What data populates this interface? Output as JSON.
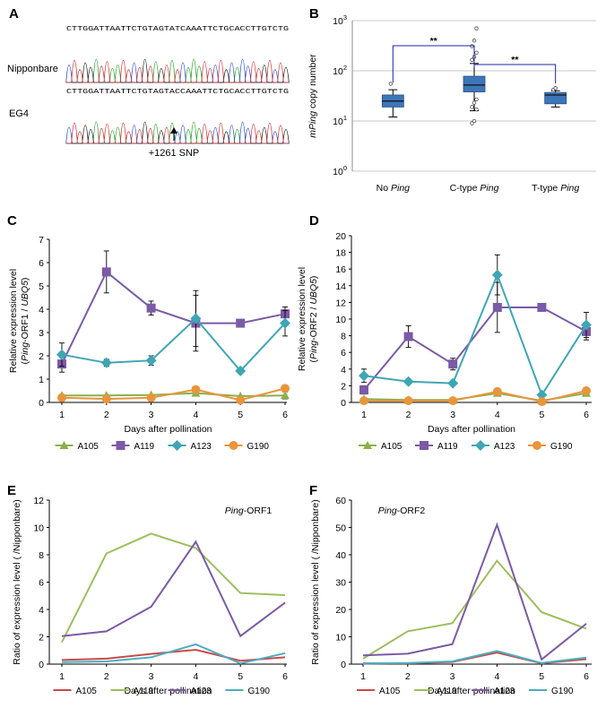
{
  "panels": {
    "A": {
      "label": "A",
      "rows": [
        {
          "name": "Nipponbare",
          "sequence": "CTTGGATTAATTCTGTAGTATCAAATTCTGCACCTTGTCTG"
        },
        {
          "name": "EG4",
          "sequence": "CTTGGATTAATTCTGTAGTACCAAATTCTGCACCTTGTCTG"
        }
      ],
      "snp_label": "+1261 SNP"
    }
  },
  "chart_data": [
    {
      "id": "B",
      "panel_label": "B",
      "type": "box",
      "ylabel_parts": [
        {
          "t": "mPing",
          "i": true
        },
        {
          "t": " copy number",
          "i": false
        }
      ],
      "y_scale": "log",
      "ylim": [
        1,
        1000
      ],
      "yticks": [
        {
          "b": "10",
          "e": "0",
          "v": 1
        },
        {
          "b": "10",
          "e": "1",
          "v": 10
        },
        {
          "b": "10",
          "e": "2",
          "v": 100
        },
        {
          "b": "10",
          "e": "3",
          "v": 1000
        }
      ],
      "grid": true,
      "categories": [
        {
          "parts": [
            {
              "t": "No ",
              "i": false
            },
            {
              "t": "Ping",
              "i": true
            }
          ]
        },
        {
          "parts": [
            {
              "t": "C-type ",
              "i": false
            },
            {
              "t": "Ping",
              "i": true
            }
          ]
        },
        {
          "parts": [
            {
              "t": "T-type ",
              "i": false
            },
            {
              "t": "Ping",
              "i": true
            }
          ]
        }
      ],
      "boxes": [
        {
          "whisker_low": 12,
          "q1": 19,
          "median": 25,
          "q3": 33,
          "whisker_high": 42,
          "outliers": [
            55
          ]
        },
        {
          "whisker_low": 16,
          "q1": 38,
          "median": 52,
          "q3": 78,
          "whisker_high": 140,
          "outliers": [
            9,
            10,
            17,
            19,
            23,
            27,
            165,
            190,
            230,
            310,
            400,
            700
          ]
        },
        {
          "whisker_low": 19,
          "q1": 22,
          "median": 33,
          "q3": 37,
          "whisker_high": 40,
          "outliers": [
            42,
            45
          ]
        }
      ],
      "significance": [
        {
          "from": 0,
          "to": 1,
          "label": "**"
        },
        {
          "from": 1,
          "to": 2,
          "label": "**"
        }
      ],
      "colors": {
        "box": "#3d76b8",
        "bracket": "#2020b0",
        "grid": "#c8c8c8"
      }
    },
    {
      "id": "C",
      "panel_label": "C",
      "type": "line",
      "x": [
        1,
        2,
        3,
        4,
        5,
        6
      ],
      "xlabel": "Days after pollination",
      "ylabel_line1": "Relative expression level",
      "ylabel_line2_parts": [
        {
          "t": "(",
          "i": false
        },
        {
          "t": "Ping",
          "i": true
        },
        {
          "t": "-ORF1 / ",
          "i": false
        },
        {
          "t": "UBQ5",
          "i": true
        },
        {
          "t": ")",
          "i": false
        }
      ],
      "ylim": [
        0,
        7
      ],
      "yticks": [
        0,
        1,
        2,
        3,
        4,
        5,
        6,
        7
      ],
      "series": [
        {
          "name": "A105",
          "color": "#8cb04a",
          "marker": "triangle",
          "values": [
            0.3,
            0.3,
            0.32,
            0.4,
            0.27,
            0.3
          ],
          "errors": [
            0,
            0,
            0,
            0,
            0,
            0.15
          ]
        },
        {
          "name": "A119",
          "color": "#7b5aa6",
          "marker": "square",
          "values": [
            1.65,
            5.6,
            4.05,
            3.4,
            3.4,
            3.8
          ],
          "errors": [
            0.35,
            0.9,
            0.3,
            1.2,
            0.15,
            0.3
          ]
        },
        {
          "name": "A123",
          "color": "#3ea6b4",
          "marker": "diamond",
          "values": [
            2.05,
            1.7,
            1.8,
            3.6,
            1.35,
            3.4
          ],
          "errors": [
            0.5,
            0.15,
            0.2,
            1.2,
            0,
            0.55
          ]
        },
        {
          "name": "G190",
          "color": "#e8953b",
          "marker": "circle",
          "values": [
            0.2,
            0.15,
            0.2,
            0.55,
            0.1,
            0.6
          ],
          "errors": [
            0,
            0,
            0,
            0,
            0,
            0
          ]
        }
      ]
    },
    {
      "id": "D",
      "panel_label": "D",
      "type": "line",
      "x": [
        1,
        2,
        3,
        4,
        5,
        6
      ],
      "xlabel": "Days after pollination",
      "ylabel_line1": "Relative expression level",
      "ylabel_line2_parts": [
        {
          "t": "(",
          "i": false
        },
        {
          "t": "Ping",
          "i": true
        },
        {
          "t": "-ORF2 / ",
          "i": false
        },
        {
          "t": "UBQ5",
          "i": true
        },
        {
          "t": ")",
          "i": false
        }
      ],
      "ylim": [
        0,
        20
      ],
      "yticks": [
        0,
        2,
        4,
        6,
        8,
        10,
        12,
        14,
        16,
        18,
        20
      ],
      "series": [
        {
          "name": "A105",
          "color": "#8cb04a",
          "marker": "triangle",
          "values": [
            0.4,
            0.3,
            0.3,
            1.1,
            0.2,
            1.1
          ],
          "errors": [
            0,
            0,
            0,
            0,
            0,
            0
          ]
        },
        {
          "name": "A119",
          "color": "#7b5aa6",
          "marker": "square",
          "values": [
            1.5,
            7.9,
            4.6,
            11.4,
            11.4,
            8.5
          ],
          "errors": [
            0.5,
            1.3,
            0.7,
            3.0,
            0,
            1.0
          ]
        },
        {
          "name": "A123",
          "color": "#3ea6b4",
          "marker": "diamond",
          "values": [
            3.2,
            2.5,
            2.3,
            15.3,
            0.9,
            9.3
          ],
          "errors": [
            0.8,
            0.3,
            0,
            2.4,
            0,
            1.5
          ]
        },
        {
          "name": "G190",
          "color": "#e8953b",
          "marker": "circle",
          "values": [
            0.2,
            0.2,
            0.2,
            1.3,
            0.1,
            1.4
          ],
          "errors": [
            0,
            0,
            0,
            0,
            0,
            0
          ]
        }
      ]
    },
    {
      "id": "E",
      "panel_label": "E",
      "type": "line",
      "x": [
        1,
        2,
        3,
        4,
        5,
        6
      ],
      "xlabel": "Days after pollination",
      "ylabel": "Ratio of expression level ( /Nipponbare)",
      "annotation_parts": [
        {
          "t": "Ping",
          "i": true
        },
        {
          "t": "-ORF1",
          "i": false
        }
      ],
      "ylim": [
        0,
        12
      ],
      "yticks": [
        0,
        2,
        4,
        6,
        8,
        10,
        12
      ],
      "series": [
        {
          "name": "A105",
          "color": "#c94a4a",
          "values": [
            0.3,
            0.4,
            0.75,
            1.05,
            0.25,
            0.5
          ]
        },
        {
          "name": "A119",
          "color": "#9cbf5c",
          "values": [
            1.6,
            8.1,
            9.55,
            8.5,
            5.2,
            5.05
          ]
        },
        {
          "name": "A123",
          "color": "#7b5aa6",
          "values": [
            2.05,
            2.4,
            4.2,
            8.95,
            2.05,
            4.5
          ]
        },
        {
          "name": "G190",
          "color": "#4aaec0",
          "values": [
            0.15,
            0.2,
            0.5,
            1.45,
            0.05,
            0.8
          ]
        }
      ]
    },
    {
      "id": "F",
      "panel_label": "F",
      "type": "line",
      "x": [
        1,
        2,
        3,
        4,
        5,
        6
      ],
      "xlabel": "Days after pollination",
      "ylabel": "Ratio of expression level ( /Nipponbare)",
      "annotation_parts": [
        {
          "t": "Ping",
          "i": true
        },
        {
          "t": "-ORF2",
          "i": false
        }
      ],
      "ylim": [
        0,
        60
      ],
      "yticks": [
        0,
        10,
        20,
        30,
        40,
        50,
        60
      ],
      "series": [
        {
          "name": "A105",
          "color": "#c94a4a",
          "values": [
            0.3,
            0.3,
            0.8,
            4.2,
            0.3,
            1.8
          ]
        },
        {
          "name": "A119",
          "color": "#9cbf5c",
          "values": [
            2.0,
            12.0,
            15.0,
            37.8,
            19.0,
            13.0
          ]
        },
        {
          "name": "A123",
          "color": "#7b5aa6",
          "values": [
            3.2,
            3.8,
            7.3,
            51.0,
            1.7,
            14.8
          ]
        },
        {
          "name": "G190",
          "color": "#4aaec0",
          "values": [
            0.2,
            0.4,
            1.0,
            4.8,
            0.4,
            2.4
          ]
        }
      ]
    }
  ]
}
